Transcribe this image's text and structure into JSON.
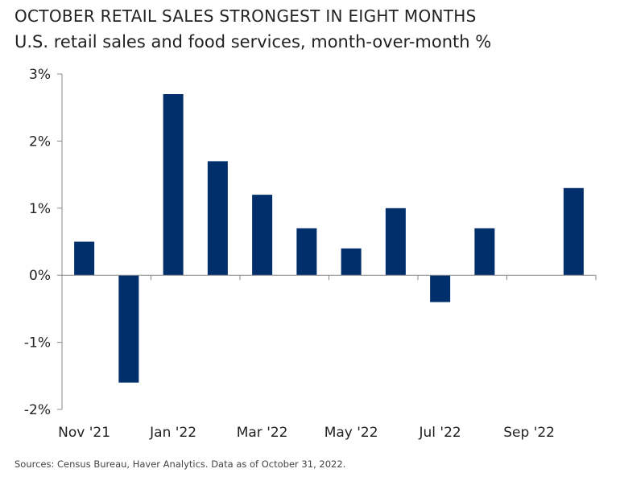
{
  "chart_data": {
    "type": "bar",
    "title": "OCTOBER RETAIL SALES STRONGEST IN EIGHT MONTHS",
    "subtitle": "U.S. retail sales and food services, month-over-month %",
    "categories": [
      "Nov '21",
      "Dec '21",
      "Jan '22",
      "Feb '22",
      "Mar '22",
      "Apr '22",
      "May '22",
      "Jun '22",
      "Jul '22",
      "Aug '22",
      "Sep '22",
      "Oct '22"
    ],
    "values": [
      0.5,
      -1.6,
      2.7,
      1.7,
      1.2,
      0.7,
      0.4,
      1.0,
      -0.4,
      0.7,
      0.0,
      1.3
    ],
    "x_tick_labels": [
      "Nov '21",
      "Jan '22",
      "Mar '22",
      "May '22",
      "Jul '22",
      "Sep '22"
    ],
    "y_tick_labels": [
      "3%",
      "2%",
      "1%",
      "0%",
      "-1%",
      "-2%"
    ],
    "y_ticks": [
      3,
      2,
      1,
      0,
      -1,
      -2
    ],
    "ylim": [
      -2,
      3
    ],
    "xlabel": "",
    "ylabel": "",
    "grid": false,
    "legend": "none",
    "bar_color": "#002F6C",
    "source": "Sources: Census Bureau, Haver Analytics. Data as of October 31, 2022."
  }
}
